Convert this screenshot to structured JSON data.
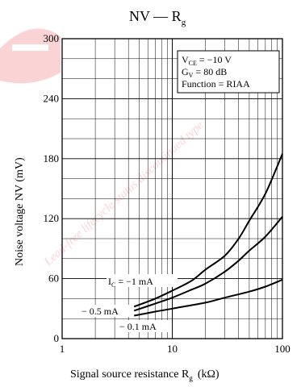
{
  "chart_data": {
    "type": "line",
    "title": "NV — R",
    "title_sub": "g",
    "xlabel": "Signal source resistance  R",
    "xlabel_sub": "g",
    "xlabel_unit": "(kΩ)",
    "ylabel": "Noise voltage  NV  (mV)",
    "x_scale": "log",
    "xlim": [
      1,
      100
    ],
    "ylim": [
      0,
      300
    ],
    "x_ticks": [
      {
        "value": 1,
        "label": "1"
      },
      {
        "value": 10,
        "label": "10"
      },
      {
        "value": 100,
        "label": "100"
      }
    ],
    "y_ticks": [
      {
        "value": 0,
        "label": "0"
      },
      {
        "value": 60,
        "label": "60"
      },
      {
        "value": 120,
        "label": "120"
      },
      {
        "value": 180,
        "label": "180"
      },
      {
        "value": 240,
        "label": "240"
      },
      {
        "value": 300,
        "label": "300"
      }
    ],
    "grid": true,
    "conditions": {
      "vce_label": "V",
      "vce_sub": "CE",
      "vce_value": " = −10 V",
      "gv_label": "G",
      "gv_sub": "V",
      "gv_value": " = 80 dB",
      "function": "Function = RIAA"
    },
    "series": [
      {
        "name_main": "I",
        "name_sub": "C",
        "name_rest": " = −1 mA",
        "x": [
          4.5,
          7,
          10,
          15,
          20,
          30,
          40,
          50,
          70,
          100
        ],
        "y": [
          32,
          40,
          48,
          58,
          69,
          83,
          100,
          118,
          145,
          185
        ]
      },
      {
        "name_main": "− 0.5 mA",
        "name_sub": "",
        "name_rest": "",
        "x": [
          4.5,
          7,
          10,
          15,
          20,
          30,
          40,
          50,
          70,
          100
        ],
        "y": [
          28,
          35,
          41,
          49,
          55,
          67,
          78,
          88,
          102,
          122
        ]
      },
      {
        "name_main": "− 0.1 mA",
        "name_sub": "",
        "name_rest": "",
        "x": [
          4.5,
          7,
          10,
          20,
          30,
          50,
          70,
          100
        ],
        "y": [
          23,
          27,
          30,
          36,
          41,
          47,
          52,
          59
        ]
      }
    ]
  },
  "watermark": "Lead-free lifecycle status discontinued type"
}
